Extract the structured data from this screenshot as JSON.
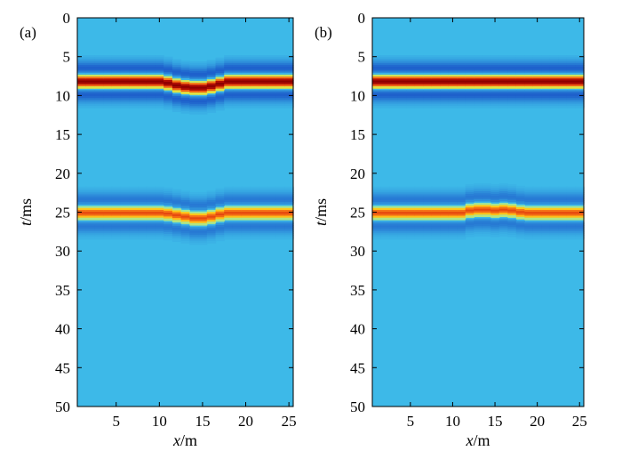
{
  "colors": {
    "background": "#3db9e8",
    "colormap": [
      "#0a1f8c",
      "#1a55c8",
      "#3db9e8",
      "#9be6a0",
      "#ffe11a",
      "#ff8c1a",
      "#d41a0a",
      "#8c0000"
    ]
  },
  "chart_data": [
    {
      "panel_label": "(a)",
      "type": "heatmap",
      "title": "",
      "xlabel_var": "x",
      "xlabel_unit": "/m",
      "ylabel_var": "t",
      "ylabel_unit": "/ms",
      "xlim": [
        0.5,
        25.5
      ],
      "ylim": [
        0,
        50
      ],
      "y_reversed": true,
      "xticks": [
        5,
        10,
        15,
        20,
        25
      ],
      "yticks": [
        0,
        5,
        10,
        15,
        20,
        25,
        30,
        35,
        40,
        45,
        50
      ],
      "events": [
        {
          "peak_amplitude": 1.0,
          "half_width_ms": 1.4,
          "center_times_ms": [
            8.2,
            8.2,
            8.2,
            8.2,
            8.2,
            8.2,
            8.2,
            8.2,
            8.2,
            8.2,
            8.4,
            8.7,
            8.9,
            9.0,
            9.0,
            8.8,
            8.5,
            8.2,
            8.2,
            8.2,
            8.2,
            8.2,
            8.2,
            8.2,
            8.2
          ]
        },
        {
          "peak_amplitude": 0.72,
          "half_width_ms": 1.4,
          "center_times_ms": [
            25.1,
            25.1,
            25.1,
            25.1,
            25.1,
            25.1,
            25.1,
            25.1,
            25.1,
            25.1,
            25.2,
            25.4,
            25.6,
            25.8,
            25.8,
            25.6,
            25.3,
            25.1,
            25.1,
            25.1,
            25.1,
            25.1,
            25.1,
            25.1,
            25.1
          ]
        }
      ]
    },
    {
      "panel_label": "(b)",
      "type": "heatmap",
      "title": "",
      "xlabel_var": "x",
      "xlabel_unit": "/m",
      "ylabel_var": "t",
      "ylabel_unit": "/ms",
      "xlim": [
        0.5,
        25.5
      ],
      "ylim": [
        0,
        50
      ],
      "y_reversed": true,
      "xticks": [
        5,
        10,
        15,
        20,
        25
      ],
      "yticks": [
        0,
        5,
        10,
        15,
        20,
        25,
        30,
        35,
        40,
        45,
        50
      ],
      "events": [
        {
          "peak_amplitude": 1.0,
          "half_width_ms": 1.4,
          "center_times_ms": [
            8.2,
            8.2,
            8.2,
            8.2,
            8.2,
            8.2,
            8.2,
            8.2,
            8.2,
            8.2,
            8.2,
            8.2,
            8.2,
            8.2,
            8.2,
            8.2,
            8.2,
            8.2,
            8.2,
            8.2,
            8.2,
            8.2,
            8.2,
            8.2,
            8.2
          ]
        },
        {
          "peak_amplitude": 0.72,
          "half_width_ms": 1.4,
          "center_times_ms": [
            25.1,
            25.1,
            25.1,
            25.1,
            25.1,
            25.1,
            25.1,
            25.1,
            25.1,
            25.1,
            25.1,
            24.8,
            24.7,
            24.7,
            24.8,
            24.7,
            24.8,
            25.0,
            25.1,
            25.1,
            25.1,
            25.1,
            25.1,
            25.1,
            25.1
          ]
        }
      ]
    }
  ]
}
